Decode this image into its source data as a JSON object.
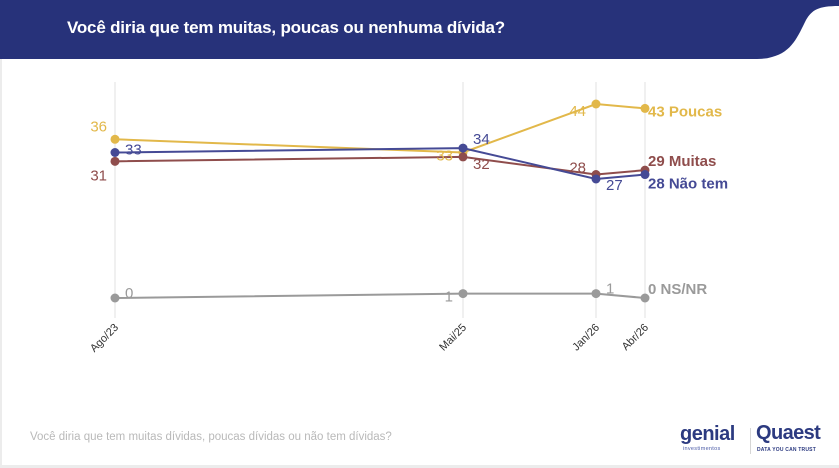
{
  "header": {
    "title": "Você diria que tem muitas, poucas ou nenhuma dívida?",
    "background_color": "#27327a"
  },
  "footer": {
    "question": "Você diria que tem muitas dívidas, poucas dívidas ou não tem dívidas?",
    "logos": {
      "genial": "genial",
      "genial_sub": "investimentos",
      "quaest": "Quaest",
      "quaest_sub": "DATA YOU CAN TRUST"
    }
  },
  "chart_data": {
    "type": "line",
    "title": "Você diria que tem muitas, poucas ou nenhuma dívida?",
    "xlabel": "",
    "ylabel": "",
    "categories": [
      "Ago/23",
      "Mai/25",
      "Jan/26",
      "Abr/26"
    ],
    "ylim": [
      0,
      44
    ],
    "grid": "vertical",
    "legend": "end-of-line labels (right)",
    "series": [
      {
        "name": "Poucas",
        "color": "#e2b84a",
        "values": [
          36,
          33,
          44,
          43
        ],
        "end_label": "43 Poucas"
      },
      {
        "name": "Muitas",
        "color": "#8f4d4c",
        "values": [
          31,
          32,
          28,
          29
        ],
        "end_label": "29 Muitas"
      },
      {
        "name": "Não tem",
        "color": "#454a95",
        "values": [
          33,
          34,
          27,
          28
        ],
        "end_label": "28 Não tem"
      },
      {
        "name": "NS/NR",
        "color": "#9a9a9a",
        "values": [
          0,
          1,
          1,
          0
        ],
        "end_label": "0 NS/NR"
      }
    ]
  }
}
